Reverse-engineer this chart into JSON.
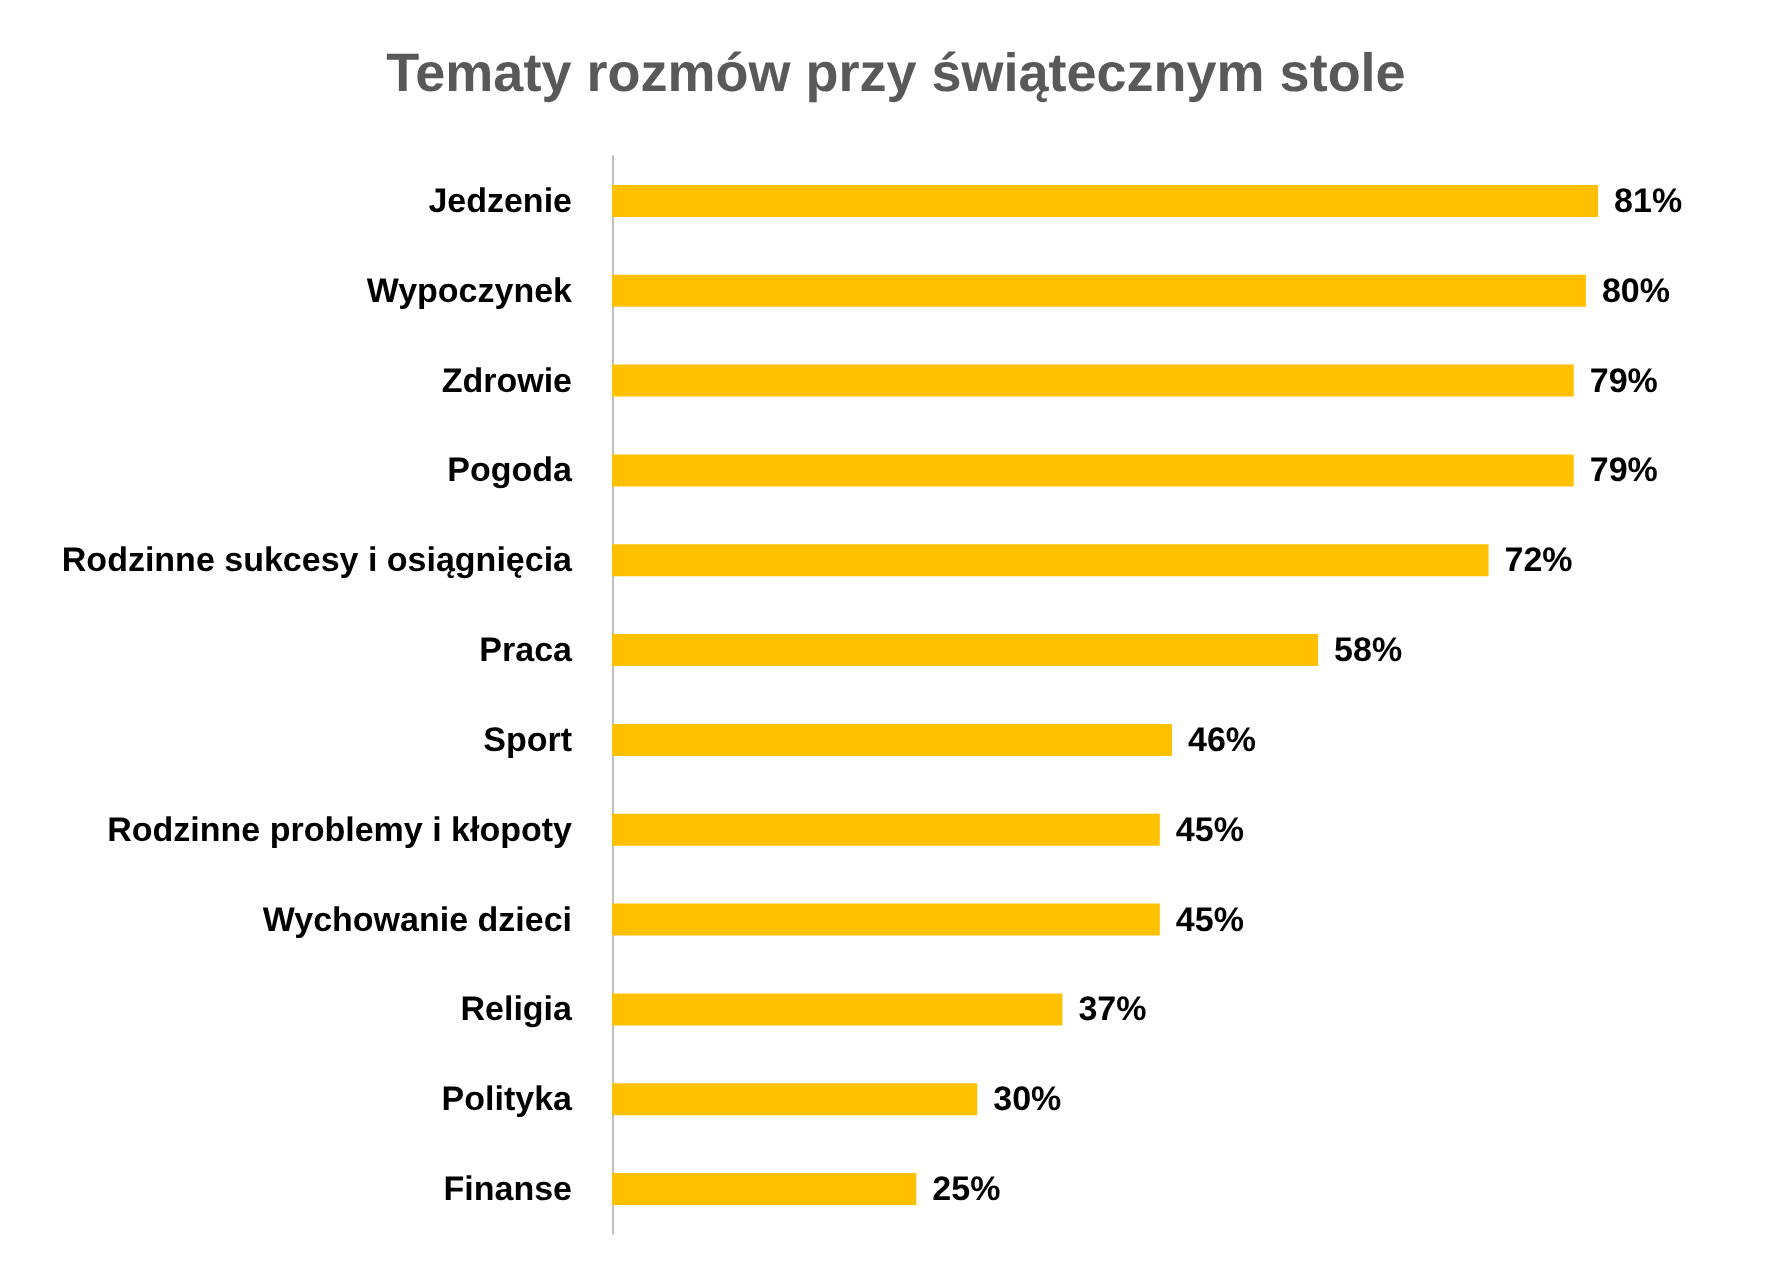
{
  "chart_data": {
    "type": "bar",
    "orientation": "horizontal",
    "title": "Tematy rozmów przy świątecznym stole",
    "categories": [
      "Jedzenie",
      "Wypoczynek",
      "Zdrowie",
      "Pogoda",
      "Rodzinne sukcesy i osiągnięcia",
      "Praca",
      "Sport",
      "Rodzinne problemy i kłopoty",
      "Wychowanie dzieci",
      "Religia",
      "Polityka",
      "Finanse"
    ],
    "values": [
      81,
      80,
      79,
      79,
      72,
      58,
      46,
      45,
      45,
      37,
      30,
      25
    ],
    "value_labels": [
      "81%",
      "80%",
      "79%",
      "79%",
      "72%",
      "58%",
      "46%",
      "45%",
      "45%",
      "37%",
      "30%",
      "25%"
    ],
    "color": "#ffc000"
  }
}
